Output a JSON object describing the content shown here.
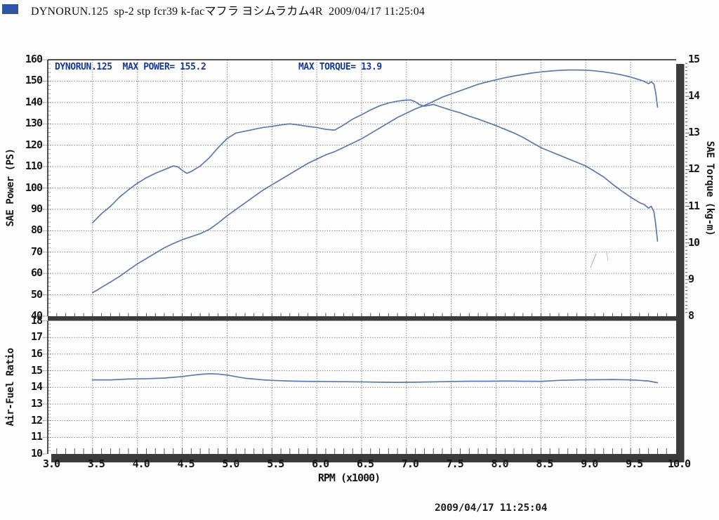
{
  "header": {
    "title": "DYNORUN.125  sp-2 stp fcr39 k-facマフラ ヨシムラカム4R  2009/04/17 11:25:04",
    "logo_color": "#2e55a8"
  },
  "footer": {
    "timestamp": "2009/04/17 11:25:04"
  },
  "colors": {
    "curve": "#5b79b5",
    "annotation_text": "#16369f",
    "grid": "#6e6e6e",
    "frame": "#1b1b1b",
    "shadow_bar": "#3b3b3b",
    "tick": "#4a4a4a"
  },
  "chart_data": [
    {
      "id": "power-torque-chart",
      "type": "line",
      "grid": true,
      "legend": "none",
      "annotations": {
        "left": "DYNORUN.125  MAX POWER= 155.2",
        "right": "MAX TORQUE= 13.9"
      },
      "max_power_ps": 155.2,
      "max_torque_kgm": 13.9,
      "x_axis": {
        "label": "RPM (x1000)",
        "min": 3.0,
        "max": 10.0,
        "ticks": [
          "3.0",
          "3.5",
          "4.0",
          "4.5",
          "5.0",
          "5.5",
          "6.0",
          "6.5",
          "7.0",
          "7.5",
          "8.0",
          "8.5",
          "9.0",
          "9.5",
          "10.0"
        ],
        "major_step": 0.5,
        "minor_step": 0.1
      },
      "y_left": {
        "label": "SAE Power (PS)",
        "min": 40,
        "max": 160,
        "ticks": [
          160,
          150,
          140,
          130,
          120,
          110,
          100,
          90,
          80,
          70,
          60,
          50,
          40
        ],
        "major_step": 10,
        "minor_step": 2
      },
      "y_right": {
        "label": "SAE Torque (kg-m)",
        "min": 8,
        "max": 15,
        "ticks": [
          15,
          14,
          13,
          12,
          11,
          10,
          9,
          8
        ],
        "major_step": 1,
        "minor_step": 0.1
      },
      "series": [
        {
          "name": "SAE Power",
          "axis": "left",
          "points": [
            [
              3.5,
              51
            ],
            [
              3.55,
              52.2
            ],
            [
              3.6,
              53.5
            ],
            [
              3.7,
              56
            ],
            [
              3.8,
              58.6
            ],
            [
              3.9,
              61.6
            ],
            [
              4.0,
              64.5
            ],
            [
              4.1,
              67
            ],
            [
              4.2,
              69.5
            ],
            [
              4.3,
              72
            ],
            [
              4.4,
              74
            ],
            [
              4.5,
              75.8
            ],
            [
              4.6,
              77.2
            ],
            [
              4.7,
              78.6
            ],
            [
              4.8,
              80.6
            ],
            [
              4.9,
              83.6
            ],
            [
              5.0,
              87
            ],
            [
              5.1,
              90
            ],
            [
              5.2,
              93
            ],
            [
              5.3,
              96
            ],
            [
              5.4,
              99
            ],
            [
              5.5,
              101.5
            ],
            [
              5.6,
              104
            ],
            [
              5.7,
              106.5
            ],
            [
              5.8,
              109
            ],
            [
              5.9,
              111.5
            ],
            [
              6.0,
              113.5
            ],
            [
              6.1,
              115.5
            ],
            [
              6.2,
              117
            ],
            [
              6.3,
              119
            ],
            [
              6.4,
              121
            ],
            [
              6.5,
              123
            ],
            [
              6.6,
              125.5
            ],
            [
              6.7,
              128
            ],
            [
              6.8,
              130.5
            ],
            [
              6.9,
              133
            ],
            [
              7.0,
              135
            ],
            [
              7.1,
              137
            ],
            [
              7.2,
              138.6
            ],
            [
              7.3,
              140.5
            ],
            [
              7.4,
              142.5
            ],
            [
              7.5,
              144
            ],
            [
              7.6,
              145.5
            ],
            [
              7.7,
              147
            ],
            [
              7.8,
              148.5
            ],
            [
              7.9,
              149.6
            ],
            [
              8.0,
              150.6
            ],
            [
              8.1,
              151.6
            ],
            [
              8.2,
              152.4
            ],
            [
              8.3,
              153.1
            ],
            [
              8.4,
              153.8
            ],
            [
              8.5,
              154.3
            ],
            [
              8.6,
              154.7
            ],
            [
              8.7,
              155.0
            ],
            [
              8.8,
              155.2
            ],
            [
              8.9,
              155.2
            ],
            [
              9.0,
              155.1
            ],
            [
              9.1,
              154.8
            ],
            [
              9.2,
              154.3
            ],
            [
              9.3,
              153.7
            ],
            [
              9.4,
              152.9
            ],
            [
              9.5,
              151.9
            ],
            [
              9.6,
              150.6
            ],
            [
              9.65,
              149.9
            ],
            [
              9.7,
              148.8
            ],
            [
              9.73,
              149.7
            ],
            [
              9.76,
              148.6
            ],
            [
              9.78,
              144.5
            ],
            [
              9.8,
              137.8
            ]
          ]
        },
        {
          "name": "SAE Torque",
          "axis": "right",
          "points": [
            [
              3.5,
              10.55
            ],
            [
              3.6,
              10.8
            ],
            [
              3.7,
              11.0
            ],
            [
              3.8,
              11.25
            ],
            [
              3.9,
              11.45
            ],
            [
              4.0,
              11.63
            ],
            [
              4.1,
              11.78
            ],
            [
              4.2,
              11.9
            ],
            [
              4.3,
              12.0
            ],
            [
              4.4,
              12.1
            ],
            [
              4.45,
              12.08
            ],
            [
              4.5,
              11.98
            ],
            [
              4.55,
              11.9
            ],
            [
              4.6,
              11.95
            ],
            [
              4.7,
              12.1
            ],
            [
              4.8,
              12.32
            ],
            [
              4.9,
              12.6
            ],
            [
              5.0,
              12.85
            ],
            [
              5.1,
              13.0
            ],
            [
              5.2,
              13.05
            ],
            [
              5.3,
              13.1
            ],
            [
              5.4,
              13.15
            ],
            [
              5.5,
              13.18
            ],
            [
              5.6,
              13.22
            ],
            [
              5.7,
              13.25
            ],
            [
              5.8,
              13.22
            ],
            [
              5.9,
              13.18
            ],
            [
              6.0,
              13.15
            ],
            [
              6.1,
              13.1
            ],
            [
              6.2,
              13.08
            ],
            [
              6.3,
              13.22
            ],
            [
              6.4,
              13.38
            ],
            [
              6.5,
              13.5
            ],
            [
              6.6,
              13.63
            ],
            [
              6.7,
              13.74
            ],
            [
              6.8,
              13.82
            ],
            [
              6.9,
              13.87
            ],
            [
              7.0,
              13.9
            ],
            [
              7.05,
              13.9
            ],
            [
              7.1,
              13.85
            ],
            [
              7.15,
              13.77
            ],
            [
              7.2,
              13.73
            ],
            [
              7.3,
              13.78
            ],
            [
              7.4,
              13.7
            ],
            [
              7.5,
              13.62
            ],
            [
              7.6,
              13.55
            ],
            [
              7.7,
              13.46
            ],
            [
              7.8,
              13.38
            ],
            [
              7.9,
              13.29
            ],
            [
              8.0,
              13.2
            ],
            [
              8.1,
              13.1
            ],
            [
              8.2,
              13.0
            ],
            [
              8.3,
              12.88
            ],
            [
              8.4,
              12.74
            ],
            [
              8.5,
              12.6
            ],
            [
              8.6,
              12.5
            ],
            [
              8.7,
              12.4
            ],
            [
              8.8,
              12.3
            ],
            [
              8.9,
              12.2
            ],
            [
              9.0,
              12.1
            ],
            [
              9.1,
              11.95
            ],
            [
              9.2,
              11.8
            ],
            [
              9.3,
              11.6
            ],
            [
              9.4,
              11.42
            ],
            [
              9.5,
              11.25
            ],
            [
              9.6,
              11.1
            ],
            [
              9.65,
              11.05
            ],
            [
              9.7,
              10.95
            ],
            [
              9.73,
              11.0
            ],
            [
              9.76,
              10.85
            ],
            [
              9.78,
              10.5
            ],
            [
              9.8,
              10.05
            ]
          ]
        }
      ]
    },
    {
      "id": "air-fuel-chart",
      "type": "line",
      "grid": true,
      "legend": "none",
      "y_left": {
        "label": "Air-Fuel Ratio",
        "min": 10,
        "max": 18,
        "ticks": [
          18,
          17,
          16,
          15,
          14,
          13,
          12,
          11,
          10
        ],
        "major_step": 1,
        "minor_step": 0.2
      },
      "series": [
        {
          "name": "Air-Fuel Ratio",
          "axis": "left",
          "points": [
            [
              3.5,
              14.45
            ],
            [
              3.7,
              14.45
            ],
            [
              3.9,
              14.5
            ],
            [
              4.1,
              14.52
            ],
            [
              4.3,
              14.56
            ],
            [
              4.5,
              14.65
            ],
            [
              4.6,
              14.72
            ],
            [
              4.7,
              14.78
            ],
            [
              4.8,
              14.82
            ],
            [
              4.9,
              14.8
            ],
            [
              5.0,
              14.74
            ],
            [
              5.1,
              14.64
            ],
            [
              5.2,
              14.55
            ],
            [
              5.3,
              14.5
            ],
            [
              5.4,
              14.45
            ],
            [
              5.5,
              14.42
            ],
            [
              5.7,
              14.38
            ],
            [
              5.9,
              14.36
            ],
            [
              6.1,
              14.35
            ],
            [
              6.3,
              14.34
            ],
            [
              6.5,
              14.33
            ],
            [
              6.7,
              14.31
            ],
            [
              6.9,
              14.3
            ],
            [
              7.1,
              14.31
            ],
            [
              7.3,
              14.33
            ],
            [
              7.5,
              14.35
            ],
            [
              7.7,
              14.37
            ],
            [
              7.9,
              14.37
            ],
            [
              8.1,
              14.38
            ],
            [
              8.3,
              14.37
            ],
            [
              8.5,
              14.36
            ],
            [
              8.7,
              14.42
            ],
            [
              8.9,
              14.45
            ],
            [
              9.1,
              14.46
            ],
            [
              9.3,
              14.47
            ],
            [
              9.5,
              14.45
            ],
            [
              9.6,
              14.42
            ],
            [
              9.7,
              14.38
            ],
            [
              9.8,
              14.28
            ]
          ]
        }
      ]
    }
  ]
}
